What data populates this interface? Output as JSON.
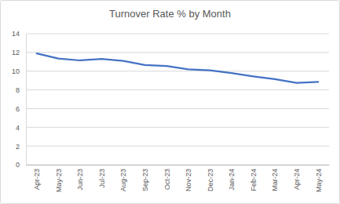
{
  "chart_data": {
    "type": "line",
    "title": "Turnover Rate % by Month",
    "categories": [
      "Apr-23",
      "May-23",
      "Jun-23",
      "Jul-23",
      "Aug-23",
      "Sep-23",
      "Oct-23",
      "Nov-23",
      "Dec-23",
      "Jan-24",
      "Feb-24",
      "Mar-24",
      "Apr-24",
      "May-24"
    ],
    "values": [
      11.9,
      11.35,
      11.15,
      11.3,
      11.1,
      10.65,
      10.55,
      10.2,
      10.1,
      9.8,
      9.45,
      9.15,
      8.75,
      8.85
    ],
    "color": "#4472c4",
    "ylim": [
      0,
      14
    ],
    "yticks": [
      0,
      2,
      4,
      6,
      8,
      10,
      12,
      14
    ],
    "grid": true
  }
}
